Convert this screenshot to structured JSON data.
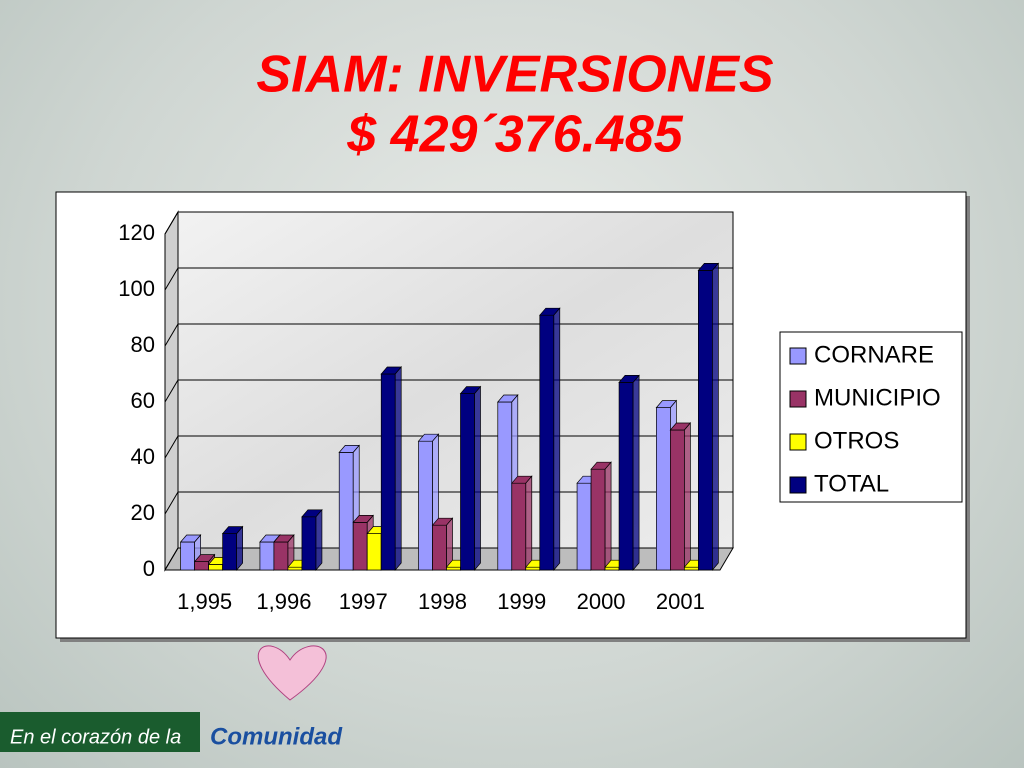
{
  "header": {
    "title": "SIAM: INVERSIONES",
    "subtitle": "$ 429´376.485"
  },
  "footer": {
    "text": "En el corazón de la",
    "brand": "Comunidad"
  },
  "chart_data": {
    "type": "bar3d",
    "categories": [
      "1,995",
      "1,996",
      "1997",
      "1998",
      "1999",
      "2000",
      "2001"
    ],
    "series": [
      {
        "name": "CORNARE",
        "color": "#9999ff",
        "values": [
          10,
          10,
          42,
          46,
          60,
          31,
          58
        ]
      },
      {
        "name": "MUNICIPIO",
        "color": "#993366",
        "values": [
          3,
          10,
          17,
          16,
          31,
          36,
          50
        ]
      },
      {
        "name": "OTROS",
        "color": "#ffff00",
        "values": [
          2,
          1,
          13,
          1,
          1,
          1,
          1
        ]
      },
      {
        "name": "TOTAL",
        "color": "#000080",
        "values": [
          13,
          19,
          70,
          63,
          91,
          67,
          107
        ]
      }
    ],
    "ylim": [
      0,
      120
    ],
    "yticks": [
      0,
      20,
      40,
      60,
      80,
      100,
      120
    ],
    "grid": true,
    "legend": "right"
  }
}
